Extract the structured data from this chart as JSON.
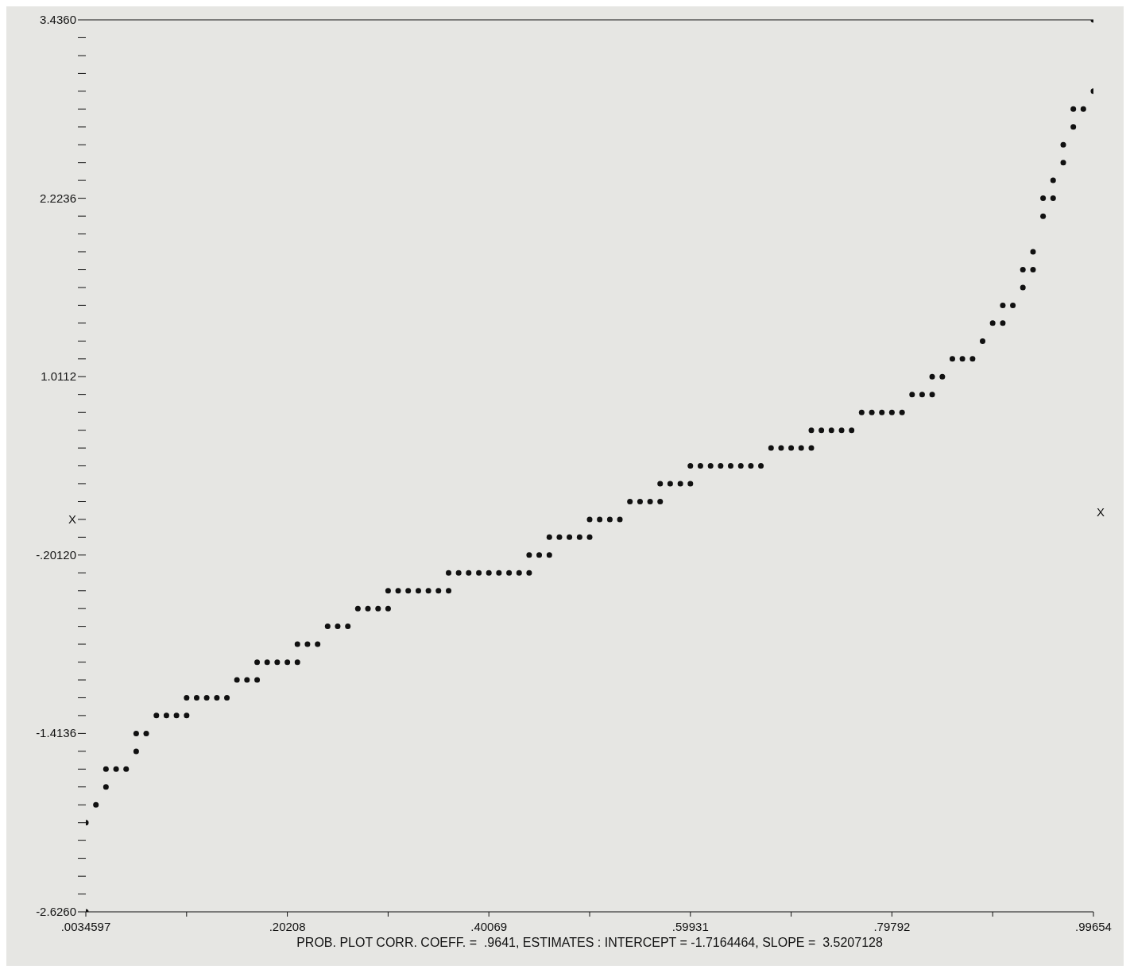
{
  "chart_data": {
    "type": "scatter",
    "color": "#111111",
    "marker": "circle",
    "x": [
      0.0035,
      0.0035,
      0.0134,
      0.0233,
      0.0233,
      0.0333,
      0.0432,
      0.0531,
      0.0531,
      0.063,
      0.073,
      0.0829,
      0.0928,
      0.1028,
      0.1028,
      0.1127,
      0.1226,
      0.1326,
      0.1425,
      0.1524,
      0.1623,
      0.1723,
      0.1723,
      0.1822,
      0.1921,
      0.2021,
      0.212,
      0.212,
      0.2219,
      0.2319,
      0.2418,
      0.2517,
      0.2617,
      0.2716,
      0.2815,
      0.2915,
      0.3014,
      0.3014,
      0.3113,
      0.3212,
      0.3312,
      0.3411,
      0.351,
      0.361,
      0.361,
      0.3709,
      0.3808,
      0.3908,
      0.4007,
      0.4106,
      0.4206,
      0.4305,
      0.4404,
      0.4404,
      0.4503,
      0.4603,
      0.4603,
      0.4702,
      0.4801,
      0.4901,
      0.5,
      0.5,
      0.5099,
      0.5199,
      0.5298,
      0.5397,
      0.5497,
      0.5596,
      0.5695,
      0.5695,
      0.5794,
      0.5894,
      0.5993,
      0.5993,
      0.6092,
      0.6192,
      0.6291,
      0.639,
      0.649,
      0.6589,
      0.6688,
      0.6788,
      0.6887,
      0.6986,
      0.7085,
      0.7185,
      0.7185,
      0.7284,
      0.7383,
      0.7483,
      0.7582,
      0.7681,
      0.7781,
      0.788,
      0.7979,
      0.8079,
      0.8178,
      0.8277,
      0.8376,
      0.8376,
      0.8476,
      0.8575,
      0.8674,
      0.8774,
      0.8873,
      0.8972,
      0.9072,
      0.9072,
      0.9171,
      0.927,
      0.927,
      0.937,
      0.937,
      0.9469,
      0.9469,
      0.9568,
      0.9568,
      0.9668,
      0.9668,
      0.9767,
      0.9767,
      0.9866,
      0.9965,
      0.9965
    ],
    "values": [
      -2.626,
      -2.02,
      -1.899,
      -1.777,
      -1.656,
      -1.656,
      -1.656,
      -1.535,
      -1.414,
      -1.414,
      -1.292,
      -1.292,
      -1.292,
      -1.292,
      -1.171,
      -1.171,
      -1.171,
      -1.171,
      -1.171,
      -1.05,
      -1.05,
      -1.05,
      -0.929,
      -0.929,
      -0.929,
      -0.929,
      -0.929,
      -0.807,
      -0.807,
      -0.807,
      -0.686,
      -0.686,
      -0.686,
      -0.565,
      -0.565,
      -0.565,
      -0.565,
      -0.444,
      -0.444,
      -0.444,
      -0.444,
      -0.444,
      -0.444,
      -0.444,
      -0.322,
      -0.322,
      -0.322,
      -0.322,
      -0.322,
      -0.322,
      -0.322,
      -0.322,
      -0.322,
      -0.201,
      -0.201,
      -0.201,
      -0.08,
      -0.08,
      -0.08,
      -0.08,
      -0.08,
      0.041,
      0.041,
      0.041,
      0.041,
      0.162,
      0.162,
      0.162,
      0.162,
      0.284,
      0.284,
      0.284,
      0.284,
      0.405,
      0.405,
      0.405,
      0.405,
      0.405,
      0.405,
      0.405,
      0.405,
      0.526,
      0.526,
      0.526,
      0.526,
      0.526,
      0.647,
      0.647,
      0.647,
      0.647,
      0.647,
      0.768,
      0.768,
      0.768,
      0.768,
      0.768,
      0.89,
      0.89,
      0.89,
      1.011,
      1.011,
      1.132,
      1.132,
      1.132,
      1.253,
      1.375,
      1.375,
      1.496,
      1.496,
      1.617,
      1.738,
      1.738,
      1.86,
      2.102,
      2.224,
      2.224,
      2.345,
      2.466,
      2.587,
      2.708,
      2.83,
      2.83,
      2.951,
      3.436
    ],
    "xlim": [
      0.0034597,
      0.99654
    ],
    "xticks": [
      {
        "value": 0.0034597,
        "label": ".0034597"
      },
      {
        "value": 0.10277,
        "label": null
      },
      {
        "value": 0.20208,
        "label": ".20208"
      },
      {
        "value": 0.30139,
        "label": null
      },
      {
        "value": 0.40069,
        "label": ".40069"
      },
      {
        "value": 0.5,
        "label": null
      },
      {
        "value": 0.59931,
        "label": ".59931"
      },
      {
        "value": 0.69862,
        "label": null
      },
      {
        "value": 0.79792,
        "label": ".79792"
      },
      {
        "value": 0.89723,
        "label": null
      },
      {
        "value": 0.99654,
        "label": ".99654"
      }
    ],
    "ylim": [
      -2.626,
      3.436
    ],
    "yticks": [
      {
        "value": -2.626,
        "label": "-2.6260"
      },
      {
        "value": -2.505,
        "label": null
      },
      {
        "value": -2.384,
        "label": null
      },
      {
        "value": -2.262,
        "label": null
      },
      {
        "value": -2.141,
        "label": null
      },
      {
        "value": -2.02,
        "label": null
      },
      {
        "value": -1.899,
        "label": null
      },
      {
        "value": -1.777,
        "label": null
      },
      {
        "value": -1.656,
        "label": null
      },
      {
        "value": -1.535,
        "label": null
      },
      {
        "value": -1.4136,
        "label": "-1.4136"
      },
      {
        "value": -1.292,
        "label": null
      },
      {
        "value": -1.171,
        "label": null
      },
      {
        "value": -1.05,
        "label": null
      },
      {
        "value": -0.929,
        "label": null
      },
      {
        "value": -0.807,
        "label": null
      },
      {
        "value": -0.686,
        "label": null
      },
      {
        "value": -0.565,
        "label": null
      },
      {
        "value": -0.444,
        "label": null
      },
      {
        "value": -0.322,
        "label": null
      },
      {
        "value": -0.2012,
        "label": "-.20120"
      },
      {
        "value": -0.08,
        "label": null
      },
      {
        "value": 0.041,
        "label": "X"
      },
      {
        "value": 0.162,
        "label": null
      },
      {
        "value": 0.284,
        "label": null
      },
      {
        "value": 0.405,
        "label": null
      },
      {
        "value": 0.526,
        "label": null
      },
      {
        "value": 0.647,
        "label": null
      },
      {
        "value": 0.768,
        "label": null
      },
      {
        "value": 0.89,
        "label": null
      },
      {
        "value": 1.0112,
        "label": "1.0112"
      },
      {
        "value": 1.132,
        "label": null
      },
      {
        "value": 1.253,
        "label": null
      },
      {
        "value": 1.375,
        "label": null
      },
      {
        "value": 1.496,
        "label": null
      },
      {
        "value": 1.617,
        "label": null
      },
      {
        "value": 1.738,
        "label": null
      },
      {
        "value": 1.86,
        "label": null
      },
      {
        "value": 1.981,
        "label": null
      },
      {
        "value": 2.102,
        "label": null
      },
      {
        "value": 2.2236,
        "label": "2.2236"
      },
      {
        "value": 2.345,
        "label": null
      },
      {
        "value": 2.466,
        "label": null
      },
      {
        "value": 2.587,
        "label": null
      },
      {
        "value": 2.708,
        "label": null
      },
      {
        "value": 2.83,
        "label": null
      },
      {
        "value": 2.951,
        "label": null
      },
      {
        "value": 3.072,
        "label": null
      },
      {
        "value": 3.193,
        "label": null
      },
      {
        "value": 3.315,
        "label": null
      },
      {
        "value": 3.436,
        "label": "3.4360"
      }
    ],
    "annotations": [
      "X",
      "PROB. PLOT CORR. COEFF. =  .9641, ESTIMATES : INTERCEPT = -1.7164464, SLOPE =  3.5207128"
    ]
  }
}
